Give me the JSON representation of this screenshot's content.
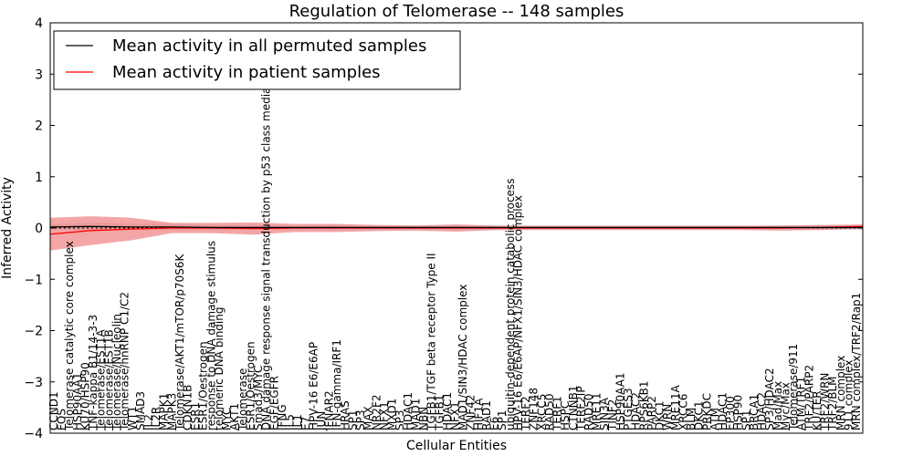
{
  "chart_data": {
    "type": "line",
    "title": "Regulation of Telomerase -- 148 samples",
    "xlabel": "Cellular Entities",
    "ylabel": "Inferred Activity",
    "ylim": [
      -4,
      4
    ],
    "yticks": [
      4,
      3,
      2,
      1,
      0,
      -1,
      -2,
      -3,
      -4
    ],
    "ytick_labels": [
      "4",
      "3",
      "2",
      "1",
      "0",
      "−1",
      "−2",
      "−3",
      "−4"
    ],
    "legend": {
      "placement": "top-left",
      "entries": [
        {
          "label": "Mean activity in all permuted samples",
          "color": "#000000"
        },
        {
          "label": "Mean activity in patient samples",
          "color": "#ff0000"
        }
      ]
    },
    "colors": {
      "permuted": "#000000",
      "patient": "#ff0000",
      "patient_band": "#f08080",
      "permuted_band": "#c0c0c0"
    },
    "categories": [
      "CCND1",
      "FOS",
      "Telomerase catalytic core complex",
      "HSP90AA1",
      "KU70/HSP90",
      "TNF-kappa B1/14-3-3",
      "Telomerase/EST1A",
      "Telomerase/EST1B",
      "Telomerase/Nucleolin",
      "Telomerase/hnRNP C1/C2",
      "WT1",
      "SMAD3",
      "IL2",
      "IL2R",
      "MAPK1",
      "MAPK3",
      "Telomerase/AKT1/mTOR/p70S6K",
      "CDKN1B",
      "ESR1",
      "ESR1/Oestrogen",
      "response to DNA damage stimulus",
      "telomeric DNA binding",
      "MYC",
      "AKT1",
      "Telomerase",
      "ESR1/Oestrogen",
      "Smad3/MYC",
      "DNA damage response signal transduction by p53 class mediator",
      "EGF/EGFR",
      "IFNG",
      "IL5",
      "IL1",
      "E7",
      "HPV-16 E6/E6AP",
      "JUN",
      "IFNAR2",
      "IFN-gamma/IRF1",
      "HRAS",
      "SP1",
      "SP3",
      "MAX",
      "NR2F2",
      "NFX1",
      "MXD1",
      "SP3",
      "HDAC1",
      "MAD1",
      "NBN",
      "TGFB1/TGF beta receptor Type II",
      "TGFB1",
      "HDAC1",
      "NFX1",
      "MAD1/SIN3/HDAC complex",
      "ZNF42",
      "HIF1A",
      "RAD1",
      "E6",
      "SP1",
      "ubiquitin-dependent protein catabolic process",
      "HPV-16 E6/E6AP/NFX1/SIN3/HDAC complex",
      "TERF2",
      "ZNF148",
      "XRCC5",
      "RAD50",
      "TERF1",
      "HSPC",
      "CTNNB1",
      "TERF2IP",
      "RAD50",
      "MRE11",
      "SIN3A",
      "TINF2",
      "HSP90AA1",
      "PTGES3",
      "HDAC2",
      "RPS6KB1",
      "PARP2",
      "DKC1",
      "WRN",
      "MRE11A",
      "XRCC6",
      "BLM",
      "DKC1",
      "PRKDC",
      "ATM",
      "HDAC1",
      "EP300",
      "HSP90",
      "SP1",
      "BRCA1",
      "HDAC2",
      "SP3/HDAC2",
      "Mad/Max",
      "Myc/Max",
      "Telomerase/911",
      "ATM/TRF1",
      "TRF2/PARP2",
      "KU/TER",
      "TRF2/WRN",
      "TRF2/BLM",
      "MRN complex",
      "911 complex",
      "MRN complex/TRF2/Rap1"
    ],
    "x": [
      0,
      0.05,
      0.1,
      0.15,
      0.2,
      0.25,
      0.3,
      0.35,
      0.4,
      0.45,
      0.5,
      0.55,
      0.6,
      0.65,
      0.7,
      0.75,
      0.8,
      0.85,
      0.9,
      0.95,
      1
    ],
    "series": [
      {
        "name": "Mean activity in all permuted samples",
        "values": [
          0.02,
          0.03,
          0.02,
          0.02,
          0.01,
          0.01,
          0.01,
          0.01,
          0.01,
          0.01,
          0.01,
          0.01,
          0.01,
          0.01,
          0.01,
          0.01,
          0.01,
          0.01,
          0.01,
          0.01,
          0.01
        ],
        "spread": [
          0.05,
          0.08,
          0.06,
          0.06,
          0.05,
          0.05,
          0.04,
          0.05,
          0.04,
          0.04,
          0.05,
          0.05,
          0.04,
          0.04,
          0.04,
          0.04,
          0.04,
          0.04,
          0.04,
          0.04,
          0.05
        ]
      },
      {
        "name": "Mean activity in patient samples",
        "values": [
          -0.12,
          -0.05,
          -0.02,
          0.0,
          0.0,
          -0.01,
          0.0,
          0.0,
          0.0,
          0.0,
          0.0,
          0.0,
          0.0,
          0.0,
          0.0,
          0.0,
          0.0,
          0.0,
          0.0,
          0.01,
          0.03
        ],
        "spread": [
          0.32,
          0.28,
          0.22,
          0.1,
          0.1,
          0.12,
          0.08,
          0.08,
          0.06,
          0.05,
          0.07,
          0.04,
          0.04,
          0.04,
          0.04,
          0.04,
          0.04,
          0.04,
          0.05,
          0.05,
          0.04
        ]
      }
    ]
  }
}
